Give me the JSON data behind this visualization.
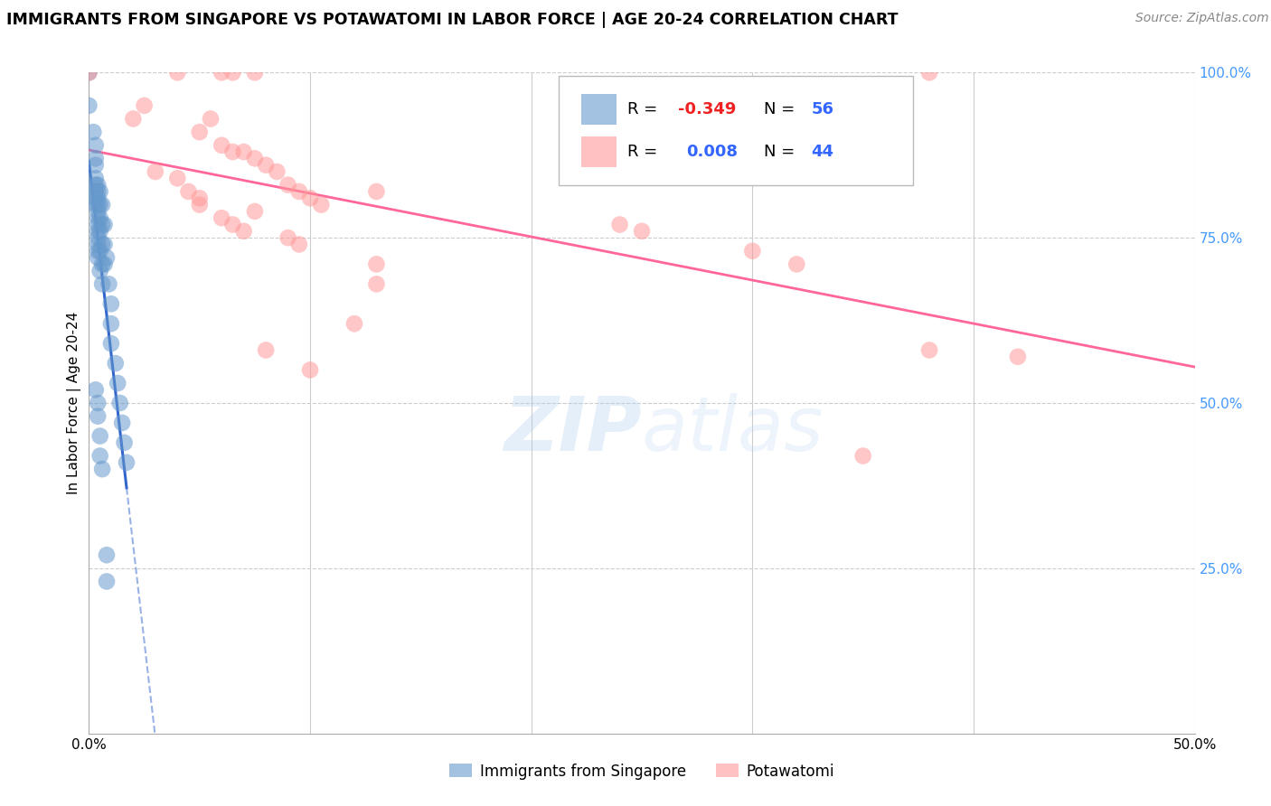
{
  "title": "IMMIGRANTS FROM SINGAPORE VS POTAWATOMI IN LABOR FORCE | AGE 20-24 CORRELATION CHART",
  "source": "Source: ZipAtlas.com",
  "ylabel": "In Labor Force | Age 20-24",
  "ylim": [
    0.0,
    1.0
  ],
  "xlim": [
    0.0,
    0.5
  ],
  "ytick_vals": [
    0.25,
    0.5,
    0.75,
    1.0
  ],
  "ytick_labels": [
    "25.0%",
    "50.0%",
    "75.0%",
    "100.0%"
  ],
  "xtick_vals": [
    0.0,
    0.1,
    0.2,
    0.3,
    0.4,
    0.5
  ],
  "xtick_labels": [
    "0.0%",
    "",
    "",
    "",
    "",
    "50.0%"
  ],
  "legend_r_singapore": "-0.349",
  "legend_n_singapore": "56",
  "legend_r_potawatomi": "0.008",
  "legend_n_potawatomi": "44",
  "singapore_color": "#6699CC",
  "potawatomi_color": "#FF9999",
  "regression_singapore_color": "#3366CC",
  "regression_potawatomi_color": "#FF6699",
  "watermark_zi": "ZIP",
  "watermark_atlas": "atlas",
  "singapore_points": [
    [
      0.0,
      1.0
    ],
    [
      0.0,
      0.95
    ],
    [
      0.002,
      0.91
    ],
    [
      0.003,
      0.89
    ],
    [
      0.003,
      0.87
    ],
    [
      0.003,
      0.86
    ],
    [
      0.003,
      0.84
    ],
    [
      0.003,
      0.83
    ],
    [
      0.003,
      0.82
    ],
    [
      0.003,
      0.81
    ],
    [
      0.003,
      0.8
    ],
    [
      0.004,
      0.83
    ],
    [
      0.004,
      0.82
    ],
    [
      0.004,
      0.81
    ],
    [
      0.004,
      0.8
    ],
    [
      0.004,
      0.79
    ],
    [
      0.004,
      0.78
    ],
    [
      0.004,
      0.77
    ],
    [
      0.004,
      0.76
    ],
    [
      0.004,
      0.75
    ],
    [
      0.004,
      0.74
    ],
    [
      0.004,
      0.73
    ],
    [
      0.004,
      0.72
    ],
    [
      0.005,
      0.82
    ],
    [
      0.005,
      0.8
    ],
    [
      0.005,
      0.78
    ],
    [
      0.005,
      0.76
    ],
    [
      0.005,
      0.73
    ],
    [
      0.005,
      0.7
    ],
    [
      0.006,
      0.8
    ],
    [
      0.006,
      0.77
    ],
    [
      0.006,
      0.74
    ],
    [
      0.006,
      0.71
    ],
    [
      0.006,
      0.68
    ],
    [
      0.007,
      0.77
    ],
    [
      0.007,
      0.74
    ],
    [
      0.007,
      0.71
    ],
    [
      0.008,
      0.72
    ],
    [
      0.009,
      0.68
    ],
    [
      0.01,
      0.65
    ],
    [
      0.01,
      0.62
    ],
    [
      0.01,
      0.59
    ],
    [
      0.012,
      0.56
    ],
    [
      0.013,
      0.53
    ],
    [
      0.014,
      0.5
    ],
    [
      0.015,
      0.47
    ],
    [
      0.016,
      0.44
    ],
    [
      0.017,
      0.41
    ],
    [
      0.003,
      0.52
    ],
    [
      0.004,
      0.5
    ],
    [
      0.004,
      0.48
    ],
    [
      0.005,
      0.45
    ],
    [
      0.005,
      0.42
    ],
    [
      0.006,
      0.4
    ],
    [
      0.008,
      0.27
    ],
    [
      0.008,
      0.23
    ]
  ],
  "potawatomi_points": [
    [
      0.0,
      1.0
    ],
    [
      0.04,
      1.0
    ],
    [
      0.06,
      1.0
    ],
    [
      0.065,
      1.0
    ],
    [
      0.075,
      1.0
    ],
    [
      0.38,
      1.0
    ],
    [
      0.02,
      0.93
    ],
    [
      0.05,
      0.91
    ],
    [
      0.06,
      0.89
    ],
    [
      0.07,
      0.88
    ],
    [
      0.025,
      0.95
    ],
    [
      0.055,
      0.93
    ],
    [
      0.03,
      0.85
    ],
    [
      0.04,
      0.84
    ],
    [
      0.065,
      0.88
    ],
    [
      0.075,
      0.87
    ],
    [
      0.08,
      0.86
    ],
    [
      0.085,
      0.85
    ],
    [
      0.09,
      0.83
    ],
    [
      0.095,
      0.82
    ],
    [
      0.1,
      0.81
    ],
    [
      0.105,
      0.8
    ],
    [
      0.06,
      0.78
    ],
    [
      0.065,
      0.77
    ],
    [
      0.07,
      0.76
    ],
    [
      0.045,
      0.82
    ],
    [
      0.05,
      0.81
    ],
    [
      0.09,
      0.75
    ],
    [
      0.095,
      0.74
    ],
    [
      0.13,
      0.82
    ],
    [
      0.13,
      0.71
    ],
    [
      0.24,
      0.77
    ],
    [
      0.25,
      0.76
    ],
    [
      0.3,
      0.73
    ],
    [
      0.32,
      0.71
    ],
    [
      0.38,
      0.58
    ],
    [
      0.42,
      0.57
    ],
    [
      0.12,
      0.62
    ],
    [
      0.08,
      0.58
    ],
    [
      0.1,
      0.55
    ],
    [
      0.35,
      0.42
    ],
    [
      0.05,
      0.8
    ],
    [
      0.075,
      0.79
    ],
    [
      0.13,
      0.68
    ]
  ]
}
